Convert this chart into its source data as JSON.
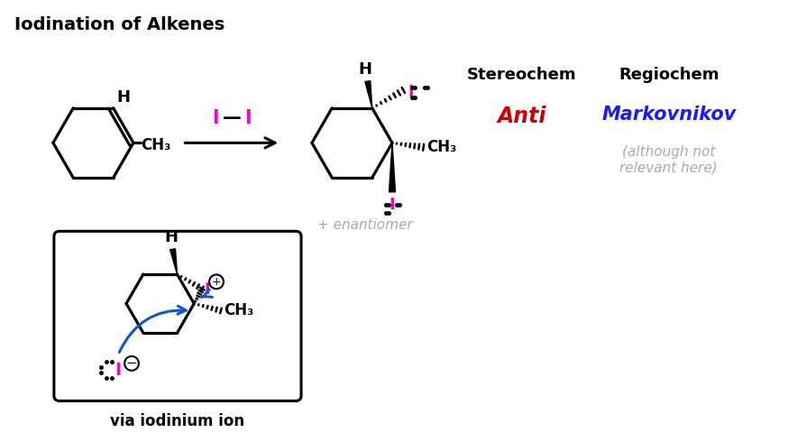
{
  "title": "Iodination of Alkenes",
  "title_fontsize": 14,
  "title_fontweight": "bold",
  "bg_color": "#ffffff",
  "stereochem_label": "Stereochem",
  "regiochem_label": "Regiochem",
  "anti_label": "Anti",
  "anti_color": "#cc0000",
  "markovnikov_label": "Markovnikov",
  "markovnikov_color": "#1a1aff",
  "although_label": "(although not\nrelevant here)",
  "although_color": "#aaaaaa",
  "enantiomer_label": "+ enantiomer",
  "enantiomer_color": "#aaaaaa",
  "via_label": "via iodinium ion",
  "iodine_color": "#ff00cc",
  "blue_arrow_color": "#1155cc"
}
